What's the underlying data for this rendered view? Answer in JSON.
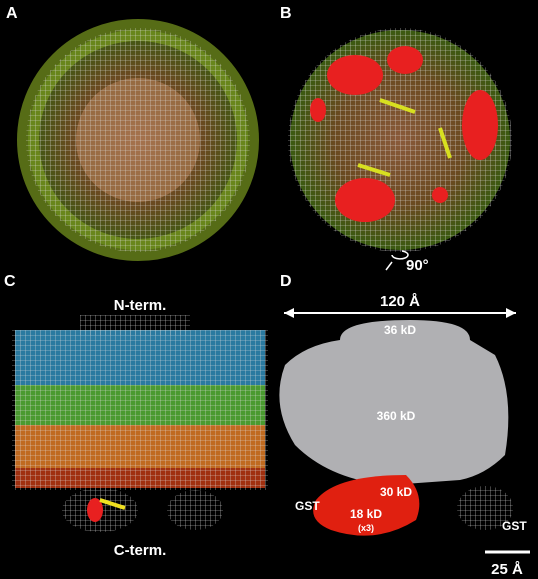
{
  "panels": [
    {
      "label": "A"
    },
    {
      "label": "B",
      "rotation": "90°"
    },
    {
      "label": "C",
      "annotations": [
        "N-term.",
        "C-term."
      ]
    },
    {
      "label": "D",
      "width_label": "120 Å",
      "masses": [
        "36 kD",
        "360 kD",
        "30 kD",
        "18 kD",
        "(x3)"
      ],
      "tags": [
        "GST",
        "GST"
      ],
      "scale_bar": "25 Å"
    }
  ]
}
